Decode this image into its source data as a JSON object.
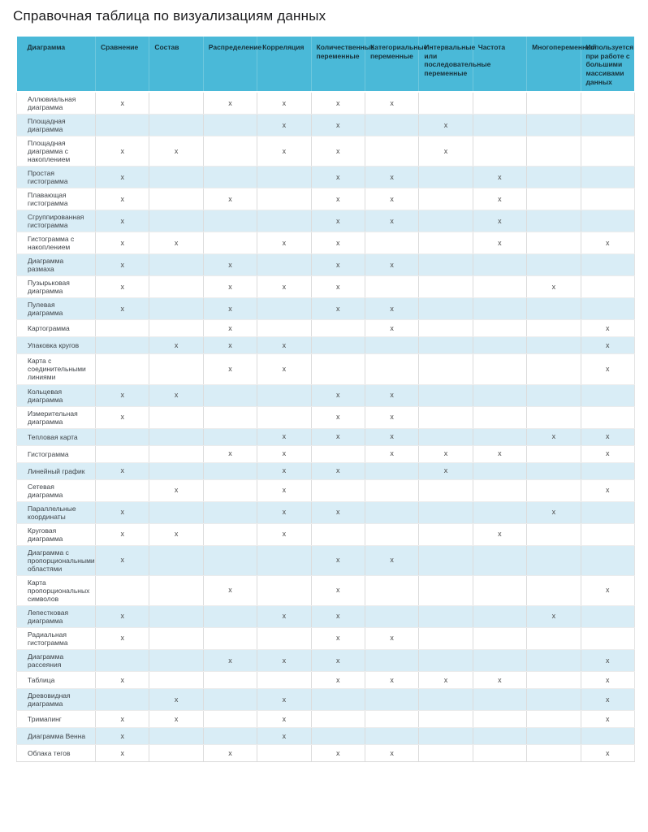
{
  "title": "Справочная таблица по визуализациям данных",
  "colors": {
    "header_bg": "#4ab9d8",
    "header_separator": "#6ec7de",
    "stripe_bg": "#d9edf6",
    "header_text": "#173039",
    "body_text": "#3f4449",
    "mark": "#4b4b4b"
  },
  "table": {
    "mark_symbol": "x",
    "columns": [
      "Диаграмма",
      "Сравнение",
      "Состав",
      "Распределение",
      "Корреляция",
      "Количественные переменные",
      "Категориальные переменные",
      "Интервальные или последовательные переменные",
      "Частота",
      "Многопеременный",
      "Используется при работе с большими массивами данных"
    ],
    "rows": [
      {
        "name": "Аллювиальная диаграмма",
        "marks": [
          1,
          0,
          1,
          1,
          1,
          1,
          0,
          0,
          0,
          0
        ]
      },
      {
        "name": "Площадная диаграмма",
        "marks": [
          0,
          0,
          0,
          1,
          1,
          0,
          1,
          0,
          0,
          0
        ]
      },
      {
        "name": "Площадная диаграмма с накоплением",
        "marks": [
          1,
          1,
          0,
          1,
          1,
          0,
          1,
          0,
          0,
          0
        ]
      },
      {
        "name": "Простая гистограмма",
        "marks": [
          1,
          0,
          0,
          0,
          1,
          1,
          0,
          1,
          0,
          0
        ]
      },
      {
        "name": "Плавающая гистограмма",
        "marks": [
          1,
          0,
          1,
          0,
          1,
          1,
          0,
          1,
          0,
          0
        ]
      },
      {
        "name": "Сгруппированная гистограмма",
        "marks": [
          1,
          0,
          0,
          0,
          1,
          1,
          0,
          1,
          0,
          0
        ]
      },
      {
        "name": "Гистограмма с накоплением",
        "marks": [
          1,
          1,
          0,
          1,
          1,
          0,
          0,
          1,
          0,
          1
        ]
      },
      {
        "name": "Диаграмма размаха",
        "marks": [
          1,
          0,
          1,
          0,
          1,
          1,
          0,
          0,
          0,
          0
        ]
      },
      {
        "name": "Пузырьковая диаграмма",
        "marks": [
          1,
          0,
          1,
          1,
          1,
          0,
          0,
          0,
          1,
          0
        ]
      },
      {
        "name": "Пулевая диаграмма",
        "marks": [
          1,
          0,
          1,
          0,
          1,
          1,
          0,
          0,
          0,
          0
        ]
      },
      {
        "name": "Картограмма",
        "marks": [
          0,
          0,
          1,
          0,
          0,
          1,
          0,
          0,
          0,
          1
        ]
      },
      {
        "name": "Упаковка кругов",
        "marks": [
          0,
          1,
          1,
          1,
          0,
          0,
          0,
          0,
          0,
          1
        ]
      },
      {
        "name": "Карта с соединительными линиями",
        "marks": [
          0,
          0,
          1,
          1,
          0,
          0,
          0,
          0,
          0,
          1
        ]
      },
      {
        "name": "Кольцевая диаграмма",
        "marks": [
          1,
          1,
          0,
          0,
          1,
          1,
          0,
          0,
          0,
          0
        ]
      },
      {
        "name": "Измерительная диаграмма",
        "marks": [
          1,
          0,
          0,
          0,
          1,
          1,
          0,
          0,
          0,
          0
        ]
      },
      {
        "name": "Тепловая карта",
        "marks": [
          0,
          0,
          0,
          1,
          1,
          1,
          0,
          0,
          1,
          1
        ]
      },
      {
        "name": "Гистограмма",
        "marks": [
          0,
          0,
          1,
          1,
          0,
          1,
          1,
          1,
          0,
          1
        ]
      },
      {
        "name": "Линейный график",
        "marks": [
          1,
          0,
          0,
          1,
          1,
          0,
          1,
          0,
          0,
          0
        ]
      },
      {
        "name": "Сетевая диаграмма",
        "marks": [
          0,
          1,
          0,
          1,
          0,
          0,
          0,
          0,
          0,
          1
        ]
      },
      {
        "name": "Параллельные координаты",
        "marks": [
          1,
          0,
          0,
          1,
          1,
          0,
          0,
          0,
          1,
          0
        ]
      },
      {
        "name": "Круговая диаграмма",
        "marks": [
          1,
          1,
          0,
          1,
          0,
          0,
          0,
          1,
          0,
          0
        ]
      },
      {
        "name": "Диаграмма с пропорциональными областями",
        "marks": [
          1,
          0,
          0,
          0,
          1,
          1,
          0,
          0,
          0,
          0
        ]
      },
      {
        "name": "Карта пропорциональных символов",
        "marks": [
          0,
          0,
          1,
          0,
          1,
          0,
          0,
          0,
          0,
          1
        ]
      },
      {
        "name": "Лепестковая диаграмма",
        "marks": [
          1,
          0,
          0,
          1,
          1,
          0,
          0,
          0,
          1,
          0
        ]
      },
      {
        "name": "Радиальная гистограмма",
        "marks": [
          1,
          0,
          0,
          0,
          1,
          1,
          0,
          0,
          0,
          0
        ]
      },
      {
        "name": "Диаграмма рассеяния",
        "marks": [
          0,
          0,
          1,
          1,
          1,
          0,
          0,
          0,
          0,
          1
        ]
      },
      {
        "name": "Таблица",
        "marks": [
          1,
          0,
          0,
          0,
          1,
          1,
          1,
          1,
          0,
          1
        ]
      },
      {
        "name": "Древовидная диаграмма",
        "marks": [
          0,
          1,
          0,
          1,
          0,
          0,
          0,
          0,
          0,
          1
        ]
      },
      {
        "name": "Тримапинг",
        "marks": [
          1,
          1,
          0,
          1,
          0,
          0,
          0,
          0,
          0,
          1
        ]
      },
      {
        "name": "Диаграмма Венна",
        "marks": [
          1,
          0,
          0,
          1,
          0,
          0,
          0,
          0,
          0,
          0
        ]
      },
      {
        "name": "Облака тегов",
        "marks": [
          1,
          0,
          1,
          0,
          1,
          1,
          0,
          0,
          0,
          1
        ]
      }
    ]
  }
}
